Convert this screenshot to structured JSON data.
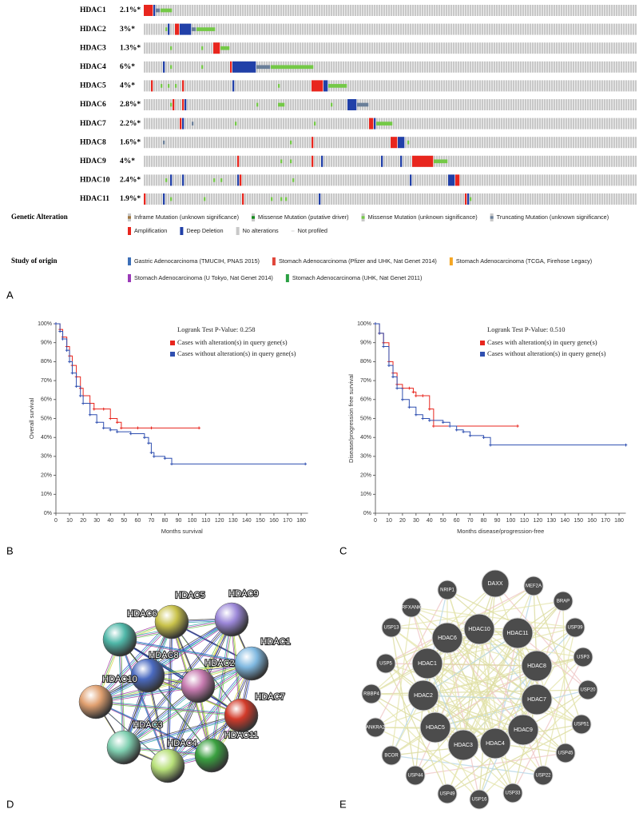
{
  "oncoprint": {
    "genes": [
      {
        "name": "HDAC1",
        "percent": "2.1%*",
        "alterations": [
          [
            0,
            3,
            4
          ],
          [
            4,
            4,
            5
          ],
          [
            5,
            6,
            3
          ],
          [
            7,
            11,
            2
          ]
        ]
      },
      {
        "name": "HDAC2",
        "percent": "3%*",
        "alterations": [
          [
            9,
            9,
            2
          ],
          [
            10,
            10,
            5
          ],
          [
            13,
            14,
            4
          ],
          [
            15,
            19,
            5
          ],
          [
            20,
            21,
            3
          ],
          [
            22,
            29,
            2
          ]
        ]
      },
      {
        "name": "HDAC3",
        "percent": "1.3%*",
        "alterations": [
          [
            11,
            11,
            2
          ],
          [
            24,
            24,
            2
          ],
          [
            29,
            31,
            4
          ],
          [
            32,
            35,
            2
          ]
        ]
      },
      {
        "name": "HDAC4",
        "percent": "6%*",
        "alterations": [
          [
            8,
            8,
            5
          ],
          [
            11,
            11,
            2
          ],
          [
            24,
            24,
            2
          ],
          [
            36,
            36,
            4
          ],
          [
            37,
            46,
            5
          ],
          [
            47,
            52,
            3
          ],
          [
            53,
            70,
            2
          ]
        ]
      },
      {
        "name": "HDAC5",
        "percent": "4%*",
        "alterations": [
          [
            3,
            3,
            4
          ],
          [
            7,
            7,
            2
          ],
          [
            10,
            10,
            2
          ],
          [
            13,
            13,
            2
          ],
          [
            16,
            16,
            4
          ],
          [
            37,
            37,
            5
          ],
          [
            56,
            56,
            2
          ],
          [
            70,
            74,
            4
          ],
          [
            75,
            76,
            5
          ],
          [
            77,
            84,
            2
          ]
        ]
      },
      {
        "name": "HDAC6",
        "percent": "2.8%*",
        "alterations": [
          [
            11,
            11,
            2
          ],
          [
            12,
            12,
            4
          ],
          [
            16,
            16,
            4
          ],
          [
            17,
            17,
            5
          ],
          [
            47,
            47,
            2
          ],
          [
            56,
            58,
            2
          ],
          [
            78,
            78,
            2
          ],
          [
            85,
            88,
            5
          ],
          [
            89,
            93,
            3
          ]
        ]
      },
      {
        "name": "HDAC7",
        "percent": "2.2%*",
        "alterations": [
          [
            15,
            15,
            4
          ],
          [
            16,
            16,
            5
          ],
          [
            20,
            20,
            3
          ],
          [
            38,
            38,
            2
          ],
          [
            71,
            71,
            2
          ],
          [
            94,
            95,
            4
          ],
          [
            96,
            96,
            5
          ],
          [
            97,
            103,
            2
          ]
        ]
      },
      {
        "name": "HDAC8",
        "percent": "1.6%*",
        "alterations": [
          [
            8,
            8,
            3
          ],
          [
            61,
            61,
            2
          ],
          [
            70,
            70,
            4
          ],
          [
            103,
            105,
            4
          ],
          [
            106,
            108,
            5
          ],
          [
            110,
            110,
            2
          ]
        ]
      },
      {
        "name": "HDAC9",
        "percent": "4%*",
        "alterations": [
          [
            39,
            39,
            4
          ],
          [
            57,
            57,
            2
          ],
          [
            61,
            61,
            2
          ],
          [
            70,
            70,
            4
          ],
          [
            74,
            74,
            5
          ],
          [
            99,
            99,
            5
          ],
          [
            107,
            107,
            5
          ],
          [
            112,
            120,
            4
          ],
          [
            121,
            126,
            2
          ]
        ]
      },
      {
        "name": "HDAC10",
        "percent": "2.4%*",
        "alterations": [
          [
            9,
            9,
            2
          ],
          [
            11,
            11,
            5
          ],
          [
            16,
            16,
            5
          ],
          [
            29,
            29,
            2
          ],
          [
            32,
            32,
            2
          ],
          [
            39,
            39,
            5
          ],
          [
            40,
            40,
            4
          ],
          [
            62,
            62,
            2
          ],
          [
            111,
            111,
            5
          ],
          [
            127,
            129,
            5
          ],
          [
            130,
            131,
            4
          ]
        ]
      },
      {
        "name": "HDAC11",
        "percent": "1.9%*",
        "alterations": [
          [
            0,
            0,
            4
          ],
          [
            8,
            8,
            5
          ],
          [
            11,
            11,
            2
          ],
          [
            25,
            25,
            2
          ],
          [
            41,
            41,
            4
          ],
          [
            53,
            53,
            2
          ],
          [
            57,
            57,
            2
          ],
          [
            59,
            59,
            2
          ],
          [
            73,
            73,
            5
          ],
          [
            134,
            134,
            4
          ],
          [
            135,
            135,
            5
          ],
          [
            136,
            136,
            2
          ]
        ]
      }
    ],
    "genetic_alteration": {
      "title": "Genetic Alteration",
      "items": [
        {
          "label": "Inframe Mutation (unknown significance)",
          "color": "#a0763f"
        },
        {
          "label": "Missense Mutation (putative driver)",
          "color": "#138a1b"
        },
        {
          "label": "Missense Mutation (unknown significance)",
          "color": "#74c947"
        },
        {
          "label": "Truncating Mutation (unknown significance)",
          "color": "#6a7f99"
        },
        {
          "label": "Amplification",
          "color": "#e8261e"
        },
        {
          "label": "Deep Deletion",
          "color": "#2140a8"
        },
        {
          "label": "No alterations",
          "color": "#c8c8c8"
        },
        {
          "label": "Not profiled",
          "color": "#ffffff"
        }
      ]
    },
    "study_of_origin": {
      "title": "Study of origin",
      "items": [
        {
          "label": "Gastric Adenocarcinoma (TMUCIH, PNAS 2015)",
          "color": "#3d6fb8"
        },
        {
          "label": "Stomach Adenocarcinoma (Pfizer and UHK, Nat Genet 2014)",
          "color": "#e0463a"
        },
        {
          "label": "Stomach Adenocarcinoma (TCGA, Firehose Legacy)",
          "color": "#f5a623"
        },
        {
          "label": "Stomach Adenocarcinoma (U Tokyo, Nat Genet 2014)",
          "color": "#9b3bb8"
        },
        {
          "label": "Stomach Adenocarcinoma (UHK, Nat Genet 2011)",
          "color": "#2aa043"
        }
      ]
    }
  },
  "panel_labels": [
    "A",
    "B",
    "C",
    "D",
    "E"
  ],
  "chart_data": [
    {
      "type": "step",
      "annotation": "Logrank Test P-Value: 0.258",
      "xlabel": "Months survival",
      "ylabel": "Overall survival",
      "xlim": [
        0,
        185
      ],
      "ylim": [
        0,
        100
      ],
      "xticks": [
        0,
        10,
        20,
        30,
        40,
        50,
        60,
        70,
        80,
        90,
        100,
        110,
        120,
        130,
        140,
        150,
        160,
        170,
        180
      ],
      "yticks": [
        {
          "value": 0,
          "label": "0%"
        },
        {
          "value": 10,
          "label": "10%"
        },
        {
          "value": 20,
          "label": "20%"
        },
        {
          "value": 30,
          "label": "30%"
        },
        {
          "value": 40,
          "label": "40%"
        },
        {
          "value": 50,
          "label": "50%"
        },
        {
          "value": 60,
          "label": "60%"
        },
        {
          "value": 70,
          "label": "70%"
        },
        {
          "value": 80,
          "label": "80%"
        },
        {
          "value": 90,
          "label": "90%"
        },
        {
          "value": 100,
          "label": "100%"
        }
      ],
      "series": [
        {
          "name": "Cases with alteration(s) in query gene(s)",
          "color": "#e8261e",
          "x": [
            0,
            3,
            5,
            8,
            10,
            12,
            15,
            18,
            20,
            25,
            28,
            35,
            40,
            45,
            48,
            60,
            70,
            105
          ],
          "values": [
            100,
            97,
            93,
            88,
            83,
            78,
            72,
            66,
            62,
            58,
            55,
            55,
            50,
            48,
            45,
            45,
            45,
            45
          ]
        },
        {
          "name": "Cases without alteration(s) in query gene(s)",
          "color": "#2f4fb0",
          "x": [
            0,
            3,
            5,
            8,
            10,
            12,
            15,
            18,
            20,
            25,
            30,
            35,
            40,
            45,
            55,
            65,
            68,
            70,
            72,
            80,
            85,
            183
          ],
          "values": [
            100,
            96,
            92,
            86,
            80,
            74,
            67,
            62,
            58,
            52,
            48,
            45,
            44,
            43,
            42,
            40,
            37,
            32,
            30,
            29,
            26,
            26
          ]
        }
      ]
    },
    {
      "type": "step",
      "annotation": "Logrank Test P-Value: 0.510",
      "xlabel": "Months disease/progression-free",
      "ylabel": "Disease/progression free survival",
      "xlim": [
        0,
        185
      ],
      "ylim": [
        0,
        100
      ],
      "xticks": [
        0,
        10,
        20,
        30,
        40,
        50,
        60,
        70,
        80,
        90,
        100,
        110,
        120,
        130,
        140,
        150,
        160,
        170,
        180
      ],
      "yticks": [
        {
          "value": 0,
          "label": "0%"
        },
        {
          "value": 10,
          "label": "10%"
        },
        {
          "value": 20,
          "label": "20%"
        },
        {
          "value": 30,
          "label": "30%"
        },
        {
          "value": 40,
          "label": "40%"
        },
        {
          "value": 50,
          "label": "50%"
        },
        {
          "value": 60,
          "label": "60%"
        },
        {
          "value": 70,
          "label": "70%"
        },
        {
          "value": 80,
          "label": "80%"
        },
        {
          "value": 90,
          "label": "90%"
        },
        {
          "value": 100,
          "label": "100%"
        }
      ],
      "series": [
        {
          "name": "Cases with alteration(s) in query gene(s)",
          "color": "#e8261e",
          "x": [
            0,
            3,
            6,
            10,
            13,
            16,
            20,
            25,
            28,
            30,
            35,
            40,
            43,
            105
          ],
          "values": [
            100,
            95,
            90,
            80,
            74,
            68,
            66,
            66,
            64,
            62,
            62,
            55,
            46,
            46
          ]
        },
        {
          "name": "Cases without alteration(s) in query gene(s)",
          "color": "#2f4fb0",
          "x": [
            0,
            3,
            6,
            10,
            13,
            16,
            20,
            25,
            30,
            35,
            40,
            50,
            55,
            60,
            65,
            70,
            80,
            85,
            185
          ],
          "values": [
            100,
            95,
            88,
            78,
            72,
            66,
            60,
            56,
            52,
            50,
            49,
            48,
            46,
            44,
            43,
            41,
            40,
            36,
            36
          ]
        }
      ]
    }
  ],
  "network_d": {
    "nodes": [
      "HDAC5",
      "HDAC9",
      "HDAC6",
      "HDAC1",
      "HDAC8",
      "HDAC2",
      "HDAC10",
      "HDAC7",
      "HDAC3",
      "HDAC11",
      "HDAC4"
    ]
  },
  "network_e": {
    "nodes": [
      "DAXX",
      "MEF2A",
      "BRAP",
      "USP39",
      "USP3",
      "USP20",
      "USP51",
      "USP45",
      "USP22",
      "USP33",
      "USP16",
      "USP49",
      "USP44",
      "BCOR",
      "ANKRA2",
      "RBBP4",
      "USP5",
      "USP13",
      "RFXANK",
      "NRIP1",
      "HDAC6",
      "HDAC10",
      "HDAC11",
      "HDAC8",
      "HDAC7",
      "HDAC9",
      "HDAC4",
      "HDAC3",
      "HDAC5",
      "HDAC2",
      "HDAC1"
    ]
  }
}
